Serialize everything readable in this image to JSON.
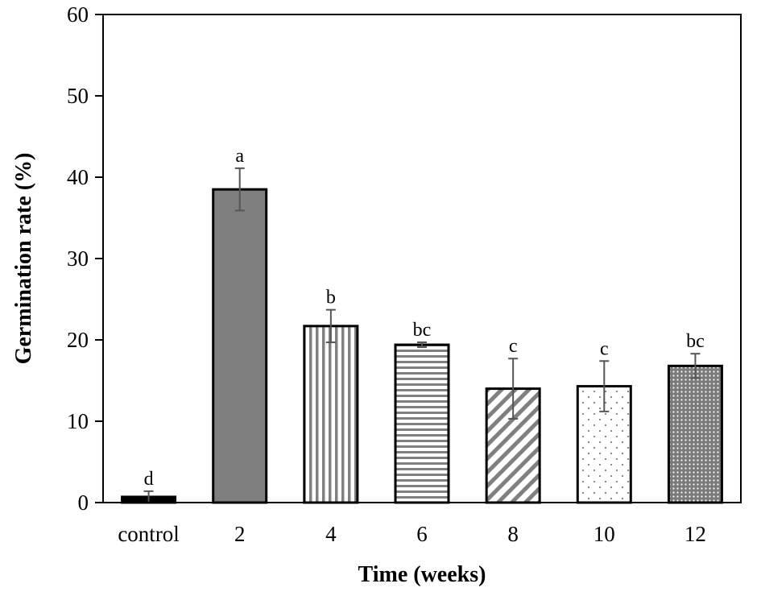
{
  "chart_data": {
    "type": "bar",
    "title": "",
    "xlabel": "Time (weeks)",
    "ylabel": "Germination rate (%)",
    "ylim": [
      0,
      60
    ],
    "yticks": [
      0,
      10,
      20,
      30,
      40,
      50,
      60
    ],
    "grid": false,
    "categories": [
      "control",
      "2",
      "4",
      "6",
      "8",
      "10",
      "12"
    ],
    "values": [
      0.7,
      38.5,
      21.7,
      19.4,
      14.0,
      14.3,
      16.8
    ],
    "errors": [
      0.7,
      2.6,
      2.0,
      0.3,
      3.7,
      3.1,
      1.5
    ],
    "significance": [
      "d",
      "a",
      "b",
      "bc",
      "c",
      "c",
      "bc"
    ],
    "fills": [
      "solid-black",
      "solid-gray",
      "vertical-lines",
      "horizontal-lines",
      "diagonal-lines",
      "sparse-dots",
      "dense-dots"
    ],
    "colors": {
      "bar_stroke": "#000000",
      "solid_black": "#000000",
      "solid_gray": "#7f7f7f",
      "pattern_gray": "#808080",
      "error_bar": "#555555"
    }
  }
}
